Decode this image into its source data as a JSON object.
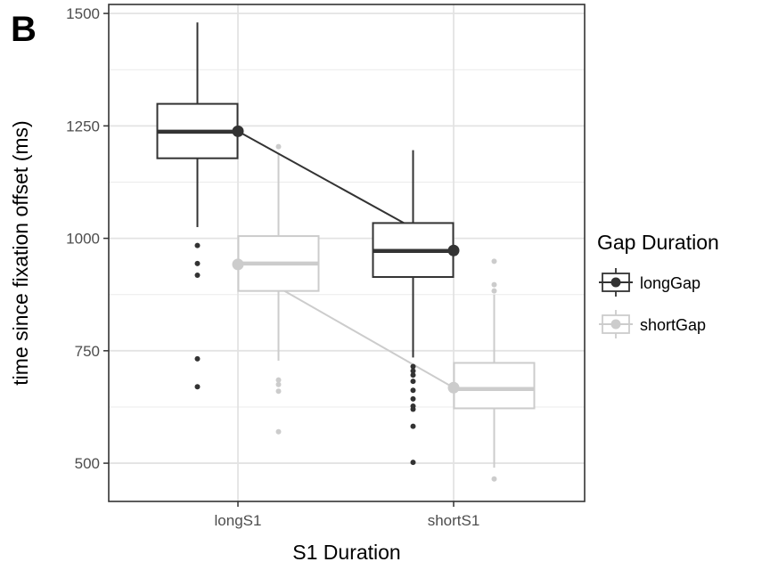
{
  "panel_label": "B",
  "chart_data": {
    "type": "box",
    "xlabel": "S1 Duration",
    "ylabel": "time since fixation offset (ms)",
    "categories": [
      "longS1",
      "shortS1"
    ],
    "ylim": [
      415,
      1520
    ],
    "yticks": [
      500,
      750,
      1000,
      1250,
      1500
    ],
    "grid": true,
    "legend": {
      "title": "Gap Duration",
      "placement": "right"
    },
    "series": [
      {
        "name": "longGap",
        "color": "#333333",
        "boxes": [
          {
            "category": "longS1",
            "min": 1025,
            "q1": 1178,
            "median": 1237,
            "q3": 1299,
            "max": 1480,
            "mean": 1238,
            "outliers": [
              984,
              944,
              918,
              732,
              670
            ]
          },
          {
            "category": "shortS1",
            "min": 735,
            "q1": 914,
            "median": 972,
            "q3": 1034,
            "max": 1196,
            "mean": 973,
            "outliers": [
              715,
              705,
              696,
              682,
              662,
              643,
              627,
              620,
              582,
              502
            ]
          }
        ]
      },
      {
        "name": "shortGap",
        "color": "#cccccc",
        "boxes": [
          {
            "category": "longS1",
            "min": 728,
            "q1": 883,
            "median": 944,
            "q3": 1005,
            "max": 1190,
            "mean": 942,
            "outliers": [
              1204,
              685,
              675,
              660,
              570
            ]
          },
          {
            "category": "shortS1",
            "min": 490,
            "q1": 622,
            "median": 665,
            "q3": 723,
            "max": 875,
            "mean": 668,
            "outliers": [
              949,
              897,
              883,
              465
            ]
          }
        ]
      }
    ]
  }
}
